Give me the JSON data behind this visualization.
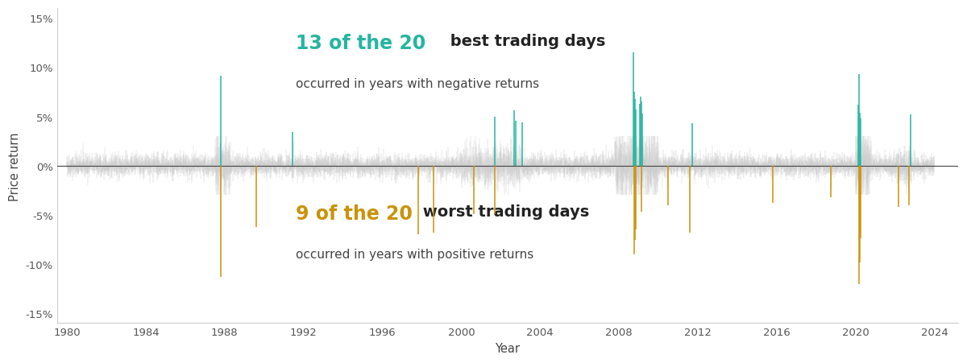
{
  "xlabel": "Year",
  "ylabel": "Price return",
  "ylim": [
    -0.16,
    0.16
  ],
  "yticks": [
    -0.15,
    -0.1,
    -0.05,
    0.0,
    0.05,
    0.1,
    0.15
  ],
  "ytick_labels": [
    "-15%",
    "-10%",
    "-5%",
    "0%",
    "5%",
    "10%",
    "15%"
  ],
  "xlim_start": 1979.5,
  "xlim_end": 2025.2,
  "xticks": [
    1980,
    1984,
    1988,
    1992,
    1996,
    2000,
    2004,
    2008,
    2012,
    2016,
    2020,
    2024
  ],
  "background_color": "#ffffff",
  "bar_color_normal": "#cccccc",
  "bar_color_best": "#26b5a0",
  "bar_color_worst": "#c9930a",
  "annotation_best_bold": "13 of the 20",
  "annotation_best_normal": " best trading days",
  "annotation_best_sub": "occurred in years with negative returns",
  "annotation_worst_bold": "9 of the 20",
  "annotation_worst_normal": " worst trading days",
  "annotation_worst_sub": "occurred in years with positive returns",
  "best_days": [
    {
      "date_num": 1987.795,
      "value": 0.091
    },
    {
      "date_num": 1991.45,
      "value": 0.034
    },
    {
      "date_num": 2001.72,
      "value": 0.05
    },
    {
      "date_num": 2002.7,
      "value": 0.056
    },
    {
      "date_num": 2002.75,
      "value": 0.046
    },
    {
      "date_num": 2003.1,
      "value": 0.044
    },
    {
      "date_num": 2008.74,
      "value": 0.115
    },
    {
      "date_num": 2008.78,
      "value": 0.075
    },
    {
      "date_num": 2008.81,
      "value": 0.068
    },
    {
      "date_num": 2008.86,
      "value": 0.057
    },
    {
      "date_num": 2009.05,
      "value": 0.063
    },
    {
      "date_num": 2009.1,
      "value": 0.07
    },
    {
      "date_num": 2009.14,
      "value": 0.065
    },
    {
      "date_num": 2009.18,
      "value": 0.053
    },
    {
      "date_num": 2011.72,
      "value": 0.043
    },
    {
      "date_num": 2020.15,
      "value": 0.062
    },
    {
      "date_num": 2020.18,
      "value": 0.093
    },
    {
      "date_num": 2020.22,
      "value": 0.054
    },
    {
      "date_num": 2020.27,
      "value": 0.048
    },
    {
      "date_num": 2022.79,
      "value": 0.052
    }
  ],
  "worst_days": [
    {
      "date_num": 1987.792,
      "value": -0.113
    },
    {
      "date_num": 1989.6,
      "value": -0.062
    },
    {
      "date_num": 1997.8,
      "value": -0.07
    },
    {
      "date_num": 1998.61,
      "value": -0.068
    },
    {
      "date_num": 2000.62,
      "value": -0.049
    },
    {
      "date_num": 2001.69,
      "value": -0.049
    },
    {
      "date_num": 2008.76,
      "value": -0.09
    },
    {
      "date_num": 2008.795,
      "value": -0.075
    },
    {
      "date_num": 2008.84,
      "value": -0.065
    },
    {
      "date_num": 2009.12,
      "value": -0.047
    },
    {
      "date_num": 2010.5,
      "value": -0.04
    },
    {
      "date_num": 2011.61,
      "value": -0.068
    },
    {
      "date_num": 2015.8,
      "value": -0.038
    },
    {
      "date_num": 2018.76,
      "value": -0.032
    },
    {
      "date_num": 2020.17,
      "value": -0.12
    },
    {
      "date_num": 2020.2,
      "value": -0.098
    },
    {
      "date_num": 2020.23,
      "value": -0.068
    },
    {
      "date_num": 2020.26,
      "value": -0.074
    },
    {
      "date_num": 2022.16,
      "value": -0.042
    },
    {
      "date_num": 2022.7,
      "value": -0.04
    }
  ]
}
